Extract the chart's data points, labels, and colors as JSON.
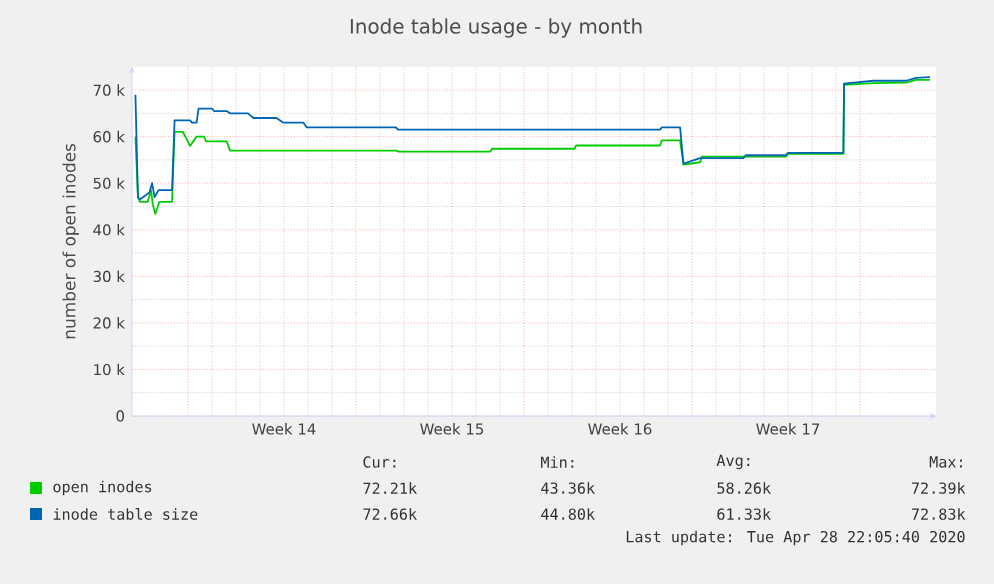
{
  "chart_data": {
    "type": "line",
    "title": "Inode table usage - by month",
    "ylabel": "number of open inodes",
    "xlim": [
      "2020-03-26T16:00",
      "2020-04-29T04:00"
    ],
    "ylim": [
      0,
      75000
    ],
    "xticks": [
      {
        "value": "2020-03-29",
        "label": null
      },
      {
        "value": "2020-04-05",
        "label": null
      },
      {
        "value": "2020-04-12",
        "label": null
      },
      {
        "value": "2020-04-19",
        "label": null
      },
      {
        "value": "2020-04-26",
        "label": null
      },
      {
        "value": "2020-04-02",
        "label": "Week 14"
      },
      {
        "value": "2020-04-09",
        "label": "Week 15"
      },
      {
        "value": "2020-04-16",
        "label": "Week 16"
      },
      {
        "value": "2020-04-23",
        "label": "Week 17"
      }
    ],
    "yticks": [
      {
        "value": 0,
        "label": "0"
      },
      {
        "value": 10000,
        "label": "10 k"
      },
      {
        "value": 20000,
        "label": "20 k"
      },
      {
        "value": 30000,
        "label": "30 k"
      },
      {
        "value": 40000,
        "label": "40 k"
      },
      {
        "value": 50000,
        "label": "50 k"
      },
      {
        "value": 60000,
        "label": "60 k"
      },
      {
        "value": 70000,
        "label": "70 k"
      }
    ],
    "grid": true,
    "legend": "bottom",
    "marker": "none",
    "line_style": "solid",
    "series": [
      {
        "name": "open inodes",
        "color": "#00cc00",
        "x": [
          "2020-03-26T19:25",
          "2020-03-26T21:56",
          "2020-03-26T23:57",
          "2020-03-27T07:41",
          "2020-03-27T11:02",
          "2020-03-27T12:43",
          "2020-03-27T15:14",
          "2020-03-27T19:26",
          "2020-03-28T08:02",
          "2020-03-28T10:34",
          "2020-03-28T18:58",
          "2020-03-29T02:01",
          "2020-03-29T08:34",
          "2020-03-29T15:58",
          "2020-03-29T17:59",
          "2020-03-30T14:38",
          "2020-03-30T18:00",
          "2020-04-06T15:59",
          "2020-04-06T18:00",
          "2020-04-10T14:24",
          "2020-04-10T16:05",
          "2020-04-14T02:24",
          "2020-04-14T04:05",
          "2020-04-17T16:05",
          "2020-04-17T17:46",
          "2020-04-18T12:04",
          "2020-04-18T15:26",
          "2020-04-19T08:04",
          "2020-04-19T10:05",
          "2020-04-22T22:05",
          "2020-04-22T23:46",
          "2020-04-25T07:22",
          "2020-04-25T08:02",
          "2020-04-26T13:26",
          "2020-04-27T22:02",
          "2020-04-28T07:57",
          "2020-04-28T22:00"
        ],
        "values": [
          60000,
          47000,
          46000,
          46000,
          48500,
          45500,
          43400,
          46000,
          46000,
          61000,
          61000,
          58000,
          60000,
          60000,
          59000,
          59000,
          57000,
          57000,
          56800,
          56800,
          57400,
          57400,
          58100,
          58100,
          59200,
          59200,
          54000,
          54500,
          55700,
          55700,
          56300,
          56300,
          71100,
          71500,
          71600,
          72200,
          72200
        ]
      },
      {
        "name": "inode table size",
        "color": "#0066b3",
        "x": [
          "2020-03-26T19:25",
          "2020-03-26T21:56",
          "2020-03-26T23:57",
          "2020-03-27T09:22",
          "2020-03-27T12:03",
          "2020-03-27T14:34",
          "2020-03-27T18:36",
          "2020-03-28T08:02",
          "2020-03-28T10:34",
          "2020-03-29T02:01",
          "2020-03-29T04:02",
          "2020-03-29T08:34",
          "2020-03-29T10:35",
          "2020-03-30T00:01",
          "2020-03-30T02:02",
          "2020-03-30T14:38",
          "2020-03-30T18:00",
          "2020-03-31T11:59",
          "2020-03-31T17:21",
          "2020-04-01T16:32",
          "2020-04-01T23:25",
          "2020-04-02T19:25",
          "2020-04-02T22:36",
          "2020-04-06T15:59",
          "2020-04-06T18:00",
          "2020-04-17T16:05",
          "2020-04-17T17:46",
          "2020-04-18T12:04",
          "2020-04-18T15:26",
          "2020-04-19T08:04",
          "2020-04-21T03:24",
          "2020-04-21T05:46",
          "2020-04-22T22:05",
          "2020-04-22T23:46",
          "2020-04-25T07:22",
          "2020-04-25T08:02",
          "2020-04-26T13:26",
          "2020-04-27T22:02",
          "2020-04-28T07:57",
          "2020-04-28T22:00"
        ],
        "values": [
          69000,
          47000,
          46500,
          48000,
          50000,
          47000,
          48500,
          48500,
          63500,
          63500,
          63000,
          63000,
          66000,
          66000,
          65500,
          65500,
          65000,
          65000,
          64000,
          64000,
          63000,
          63000,
          62000,
          62000,
          61500,
          61500,
          62000,
          62000,
          54200,
          55400,
          55400,
          56000,
          56000,
          56500,
          56500,
          71400,
          72000,
          72000,
          72600,
          72800
        ]
      }
    ],
    "annotations": [
      "Cur:",
      "Min:",
      "Avg:",
      "Max:",
      "72.21k",
      "43.36k",
      "58.26k",
      "72.39k",
      "72.66k",
      "44.80k",
      "61.33k",
      "72.83k",
      "Last update: Tue Apr 28 22:05:40 2020"
    ]
  }
}
